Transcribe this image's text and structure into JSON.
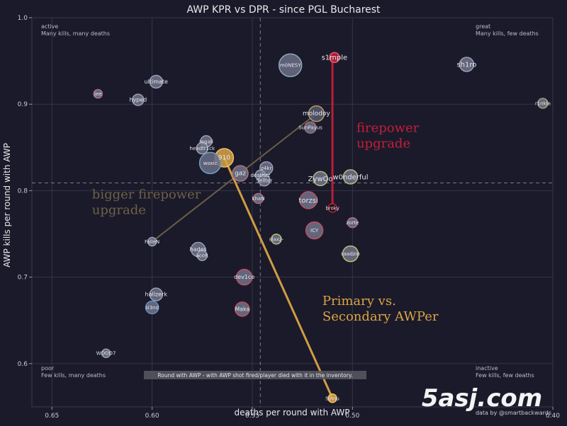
{
  "chart_data": {
    "type": "scatter",
    "title": "AWP KPR vs DPR - since PGL Bucharest",
    "xlabel": "deaths per round with AWP",
    "ylabel": "AWP kills per round with AWP",
    "x_reversed": true,
    "xlim": [
      0.66,
      0.4
    ],
    "ylim": [
      0.55,
      1.0
    ],
    "x_ticks": [
      {
        "value": 0.65,
        "label": "0.65"
      },
      {
        "value": 0.6,
        "label": "0.60"
      },
      {
        "value": 0.55,
        "label": "0.55"
      },
      {
        "value": 0.5,
        "label": "0.50"
      },
      {
        "value": 0.4,
        "label": "0.40"
      }
    ],
    "y_ticks": [
      {
        "value": 0.6,
        "label": "0.6"
      },
      {
        "value": 0.7,
        "label": "0.7"
      },
      {
        "value": 0.8,
        "label": "0.8"
      },
      {
        "value": 0.9,
        "label": "0.9"
      },
      {
        "value": 1.0,
        "label": "1.0"
      }
    ],
    "grid": true,
    "avg_x": 0.546,
    "avg_y": 0.809,
    "quadrant_labels": [
      {
        "corner": "top-left",
        "title": "active",
        "subtitle": "Many kills, many deaths"
      },
      {
        "corner": "top-right",
        "title": "great",
        "subtitle": "Many kills, few deaths"
      },
      {
        "corner": "bottom-left",
        "title": "poor",
        "subtitle": "Few kills, many deaths"
      },
      {
        "corner": "bottom-right",
        "title": "inactive",
        "subtitle": "Few kills, few deaths"
      }
    ],
    "points": [
      {
        "label": "s1mple",
        "x": 0.509,
        "y": 0.954,
        "size": 7,
        "fill": "#c41e3a",
        "stroke": "#e06070",
        "label_size": 10
      },
      {
        "label": "m0NESY",
        "x": 0.531,
        "y": 0.945,
        "size": 16,
        "fill": "#6a6f85",
        "stroke": "#8fa8b8",
        "label_size": 7
      },
      {
        "label": "sh1ro",
        "x": 0.443,
        "y": 0.946,
        "size": 10,
        "fill": "#70748a",
        "stroke": "#9a9fb0",
        "label_size": 10
      },
      {
        "label": "ultimate",
        "x": 0.598,
        "y": 0.926,
        "size": 9,
        "fill": "#70748a",
        "stroke": "#9a9fb0",
        "label_size": 8
      },
      {
        "label": "jee",
        "x": 0.627,
        "y": 0.912,
        "size": 6,
        "fill": "#70748a",
        "stroke": "#b07080",
        "label_size": 7
      },
      {
        "label": "hyped",
        "x": 0.607,
        "y": 0.905,
        "size": 8,
        "fill": "#70748a",
        "stroke": "#9a9fb0",
        "label_size": 8
      },
      {
        "label": "r1nkle",
        "x": 0.405,
        "y": 0.901,
        "size": 7,
        "fill": "#70748a",
        "stroke": "#a0a070",
        "label_size": 7
      },
      {
        "label": "molodoy",
        "x": 0.518,
        "y": 0.889,
        "size": 11,
        "fill": "#555a70",
        "stroke": "#b89a60",
        "label_size": 9
      },
      {
        "label": "SunPayus",
        "x": 0.521,
        "y": 0.873,
        "size": 8,
        "fill": "#70748a",
        "stroke": "#a07080",
        "label_size": 7
      },
      {
        "label": "regali",
        "x": 0.573,
        "y": 0.857,
        "size": 8,
        "fill": "#70748a",
        "stroke": "#9a9fb0",
        "label_size": 7
      },
      {
        "label": "headtr1ck",
        "x": 0.575,
        "y": 0.849,
        "size": 8,
        "fill": "#70748a",
        "stroke": "#9a9fb0",
        "label_size": 7
      },
      {
        "label": "910",
        "x": 0.564,
        "y": 0.838,
        "size": 13,
        "fill": "#d9a545",
        "stroke": "#f0c070",
        "label_size": 9
      },
      {
        "label": "woxic",
        "x": 0.571,
        "y": 0.832,
        "size": 15,
        "fill": "#6a6f85",
        "stroke": "#6ea0c0",
        "label_size": 7
      },
      {
        "label": "z4kr",
        "x": 0.543,
        "y": 0.826,
        "size": 9,
        "fill": "#70748a",
        "stroke": "#9a9fb0",
        "label_size": 7
      },
      {
        "label": "gaz",
        "x": 0.556,
        "y": 0.82,
        "size": 11,
        "fill": "#70748a",
        "stroke": "#b07080",
        "label_size": 9
      },
      {
        "label": "deathzz",
        "x": 0.546,
        "y": 0.818,
        "size": 7,
        "fill": "#70748a",
        "stroke": "#9a9fb0",
        "label_size": 7
      },
      {
        "label": "Sellter",
        "x": 0.544,
        "y": 0.812,
        "size": 8,
        "fill": "#70748a",
        "stroke": "#9a9fb0",
        "label_size": 7
      },
      {
        "label": "ZywOo",
        "x": 0.516,
        "y": 0.814,
        "size": 10,
        "fill": "#70748a",
        "stroke": "#b0c070",
        "label_size": 10
      },
      {
        "label": "w0nderful",
        "x": 0.501,
        "y": 0.816,
        "size": 10,
        "fill": "#70748a",
        "stroke": "#b0c070",
        "label_size": 10
      },
      {
        "label": "khaN",
        "x": 0.547,
        "y": 0.791,
        "size": 7,
        "fill": "#70748a",
        "stroke": "#b07080",
        "label_size": 7
      },
      {
        "label": "torzsi",
        "x": 0.522,
        "y": 0.789,
        "size": 12,
        "fill": "#70748a",
        "stroke": "#c05060",
        "label_size": 10
      },
      {
        "label": "broky",
        "x": 0.51,
        "y": 0.78,
        "size": 6,
        "fill": "#111111",
        "stroke": "#c41e3a",
        "label_size": 7
      },
      {
        "label": "zorte",
        "x": 0.5,
        "y": 0.763,
        "size": 7,
        "fill": "#70748a",
        "stroke": "#b07080",
        "label_size": 7
      },
      {
        "label": "ICY",
        "x": 0.519,
        "y": 0.754,
        "size": 12,
        "fill": "#70748a",
        "stroke": "#c05060",
        "label_size": 7
      },
      {
        "label": "slaxz-",
        "x": 0.538,
        "y": 0.744,
        "size": 7,
        "fill": "#70748a",
        "stroke": "#b0c070",
        "label_size": 7
      },
      {
        "label": "FalleN",
        "x": 0.6,
        "y": 0.741,
        "size": 6,
        "fill": "#70748a",
        "stroke": "#9a9fb0",
        "label_size": 7
      },
      {
        "label": "saadzin",
        "x": 0.501,
        "y": 0.727,
        "size": 11,
        "fill": "#70748a",
        "stroke": "#c0c070",
        "label_size": 7
      },
      {
        "label": "hades",
        "x": 0.577,
        "y": 0.732,
        "size": 10,
        "fill": "#70748a",
        "stroke": "#9a9fb0",
        "label_size": 8
      },
      {
        "label": "acoR",
        "x": 0.575,
        "y": 0.725,
        "size": 7,
        "fill": "#70748a",
        "stroke": "#9a9fb0",
        "label_size": 7
      },
      {
        "label": "dev1ce",
        "x": 0.554,
        "y": 0.7,
        "size": 11,
        "fill": "#70748a",
        "stroke": "#c05060",
        "label_size": 8
      },
      {
        "label": "hallzerk",
        "x": 0.598,
        "y": 0.68,
        "size": 9,
        "fill": "#70748a",
        "stroke": "#9a9fb0",
        "label_size": 8
      },
      {
        "label": "sl3nd",
        "x": 0.6,
        "y": 0.665,
        "size": 9,
        "fill": "#70748a",
        "stroke": "#5a90c0",
        "label_size": 7
      },
      {
        "label": "Maka",
        "x": 0.555,
        "y": 0.663,
        "size": 10,
        "fill": "#70748a",
        "stroke": "#c05060",
        "label_size": 8
      },
      {
        "label": "WOOD7",
        "x": 0.623,
        "y": 0.612,
        "size": 6,
        "fill": "#70748a",
        "stroke": "#9a9fb0",
        "label_size": 7
      },
      {
        "label": "Sinnu",
        "x": 0.51,
        "y": 0.56,
        "size": 6,
        "fill": "#d9a545",
        "stroke": "#f0c070",
        "label_size": 7
      }
    ],
    "arrows": [
      {
        "from": [
          0.51,
          0.78
        ],
        "to": [
          0.51,
          0.954
        ],
        "color": "#c41e3a",
        "width": 3
      },
      {
        "from": [
          0.6,
          0.741
        ],
        "to": [
          0.518,
          0.889
        ],
        "color": "#6e6148",
        "width": 2
      },
      {
        "from": [
          0.564,
          0.838
        ],
        "to": [
          0.51,
          0.56
        ],
        "color": "#d9a545",
        "width": 3
      }
    ],
    "annotations": [
      {
        "lines": [
          "firepower",
          "upgrade"
        ],
        "x": 0.498,
        "y": 0.868,
        "color": "#c41e3a",
        "size": 18
      },
      {
        "lines": [
          "bigger firepower",
          "upgrade"
        ],
        "x": 0.63,
        "y": 0.791,
        "color": "#6e6148",
        "size": 18
      },
      {
        "lines": [
          "Primary vs.",
          "Secondary AWPer"
        ],
        "x": 0.515,
        "y": 0.668,
        "color": "#d9a545",
        "size": 18
      }
    ],
    "footnote": "Round with AWP - with AWP shot fired/player died with it in the inventory.",
    "credit": "data by @smartbackwards"
  },
  "watermark": "5asj.com"
}
